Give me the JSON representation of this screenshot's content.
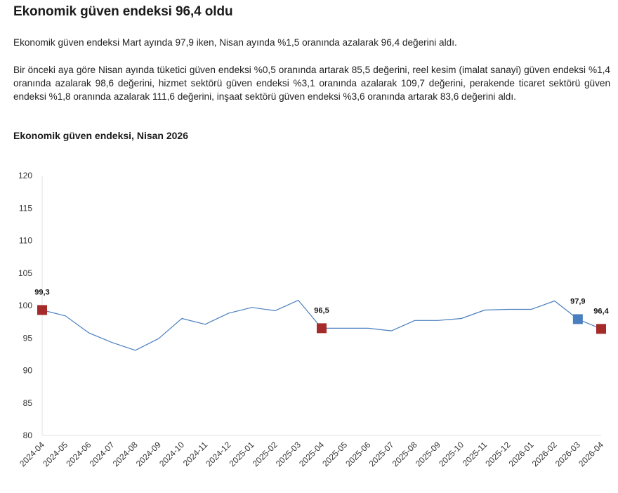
{
  "header": {
    "title": "Ekonomik güven endeksi 96,4 oldu"
  },
  "body": {
    "paragraph_1": "Ekonomik güven endeksi Mart ayında 97,9 iken, Nisan ayında %1,5 oranında azalarak 96,4 değerini aldı.",
    "paragraph_2": "Bir önceki aya göre Nisan ayında tüketici güven endeksi %0,5 oranında artarak 85,5 değerini, reel kesim (imalat sanayi) güven endeksi %1,4 oranında azalarak 98,6 değerini, hizmet sektörü güven endeksi %3,1 oranında azalarak 109,7 değerini, perakende ticaret sektörü güven endeksi %1,8 oranında azalarak 111,6 değerini, inşaat sektörü güven endeksi %3,6 oranında artarak 83,6 değerini aldı."
  },
  "chart_data": {
    "type": "line",
    "title": "Ekonomik güven endeksi, Nisan 2026",
    "xlabel": "",
    "ylabel": "",
    "ylim": [
      80,
      120
    ],
    "yticks": [
      80,
      85,
      90,
      95,
      100,
      105,
      110,
      115,
      120
    ],
    "grid": false,
    "categories": [
      "2024-04",
      "2024-05",
      "2024-06",
      "2024-07",
      "2024-08",
      "2024-09",
      "2024-10",
      "2024-11",
      "2024-12",
      "2025-01",
      "2025-02",
      "2025-03",
      "2025-04",
      "2025-05",
      "2025-06",
      "2025-07",
      "2025-08",
      "2025-09",
      "2025-10",
      "2025-11",
      "2025-12",
      "2026-01",
      "2026-02",
      "2026-03",
      "2026-04"
    ],
    "series": [
      {
        "values": [
          99.3,
          98.4,
          95.8,
          94.3,
          93.1,
          94.9,
          98.0,
          97.1,
          98.8,
          99.7,
          99.2,
          100.8,
          96.5,
          96.5,
          96.5,
          96.1,
          97.7,
          97.7,
          98.0,
          99.3,
          99.4,
          99.4,
          100.7,
          97.9,
          96.4
        ],
        "color": "#4a7fbf"
      }
    ],
    "highlighted_points": [
      {
        "category": "2024-04",
        "label": "99,3",
        "color": "#a52a2a"
      },
      {
        "category": "2025-04",
        "label": "96,5",
        "color": "#a52a2a"
      },
      {
        "category": "2026-03",
        "label": "97,9",
        "color": "#4a7fbf"
      },
      {
        "category": "2026-04",
        "label": "96,4",
        "color": "#a52a2a"
      }
    ]
  }
}
